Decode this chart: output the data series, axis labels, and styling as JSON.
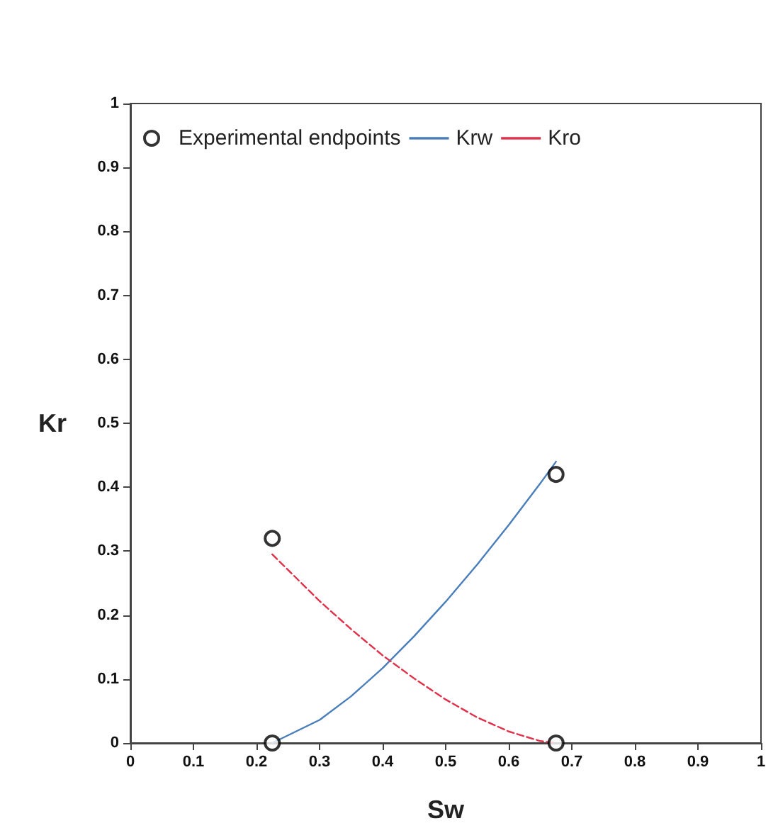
{
  "chart_data": {
    "type": "line",
    "xlabel": "Sw",
    "ylabel": "Kr",
    "xlim": [
      0,
      1
    ],
    "xticks": [
      0,
      0.1,
      0.2,
      0.3,
      0.4,
      0.5,
      0.6,
      0.7,
      0.8,
      0.9,
      1
    ],
    "ylim": [
      0,
      1
    ],
    "yticks": [
      0,
      0.1,
      0.2,
      0.3,
      0.4,
      0.5,
      0.6,
      0.7,
      0.8,
      0.9,
      1
    ],
    "grid": false,
    "legend": "top left",
    "series": [
      {
        "name": "Experimental endpoints",
        "type": "scatter",
        "marker": "circle",
        "color": "#000000",
        "x": [
          0.225,
          0.225,
          0.675,
          0.675
        ],
        "values": [
          0,
          0.32,
          0.42,
          0
        ]
      },
      {
        "name": "Krw",
        "marker": "none",
        "line_style": "solid",
        "color": "#4a7ebb",
        "x": [
          0.225,
          0.3,
          0.35,
          0.4,
          0.45,
          0.5,
          0.55,
          0.6,
          0.65,
          0.675
        ],
        "values": [
          0,
          0.036,
          0.073,
          0.117,
          0.167,
          0.221,
          0.279,
          0.341,
          0.406,
          0.44
        ]
      },
      {
        "name": "Kro",
        "marker": "none",
        "line_style": "dashed",
        "color": "#e0304a",
        "x": [
          0.225,
          0.3,
          0.35,
          0.4,
          0.45,
          0.5,
          0.55,
          0.6,
          0.65,
          0.675
        ],
        "values": [
          0.295,
          0.222,
          0.178,
          0.137,
          0.101,
          0.068,
          0.04,
          0.018,
          0.003,
          0
        ]
      }
    ]
  }
}
